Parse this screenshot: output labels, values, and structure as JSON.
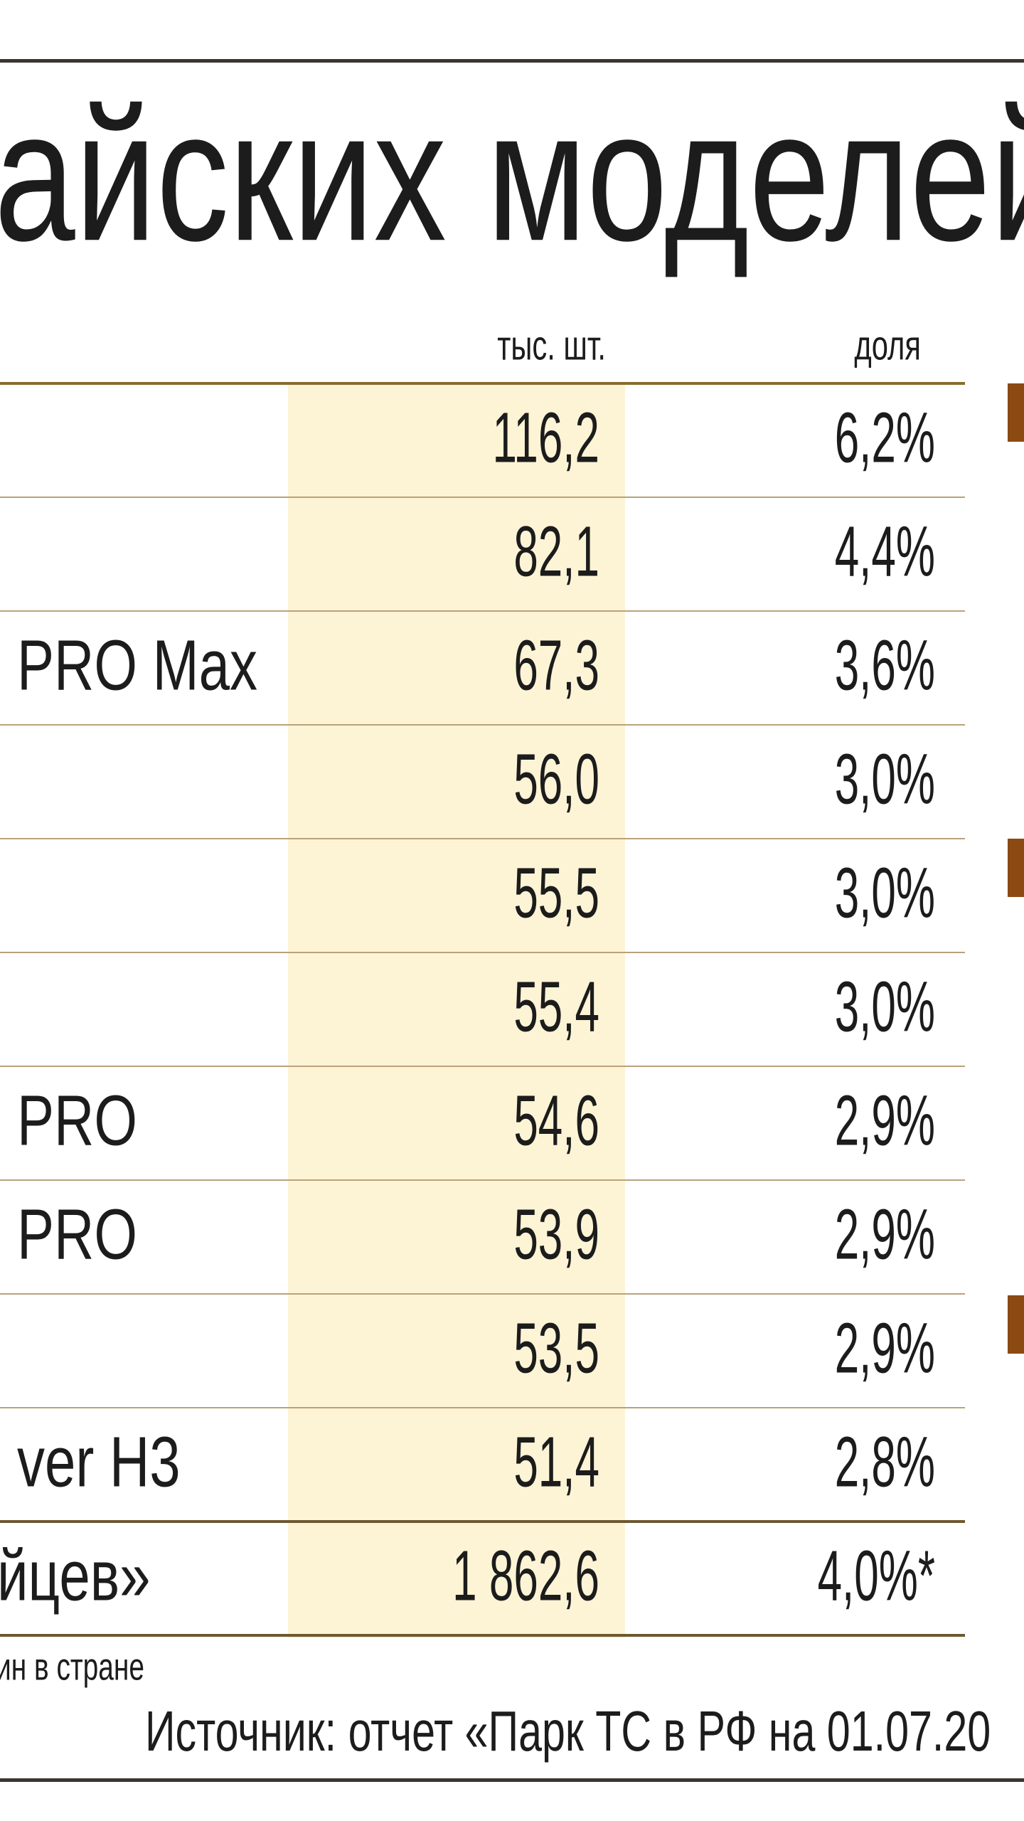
{
  "title": "айских моделей в",
  "table": {
    "header": {
      "count": "тыс. шт.",
      "share": "доля"
    },
    "rows": [
      {
        "count": "116,2",
        "share": "6,2%"
      },
      {
        "count": "82,1",
        "share": "4,4%"
      },
      {
        "name": "PRO Max",
        "count": "67,3",
        "share": "3,6%"
      },
      {
        "count": "56,0",
        "share": "3,0%"
      },
      {
        "count": "55,5",
        "share": "3,0%"
      },
      {
        "count": "55,4",
        "share": "3,0%"
      },
      {
        "name": "PRO",
        "count": "54,6",
        "share": "2,9%"
      },
      {
        "name": "PRO",
        "count": "53,9",
        "share": "2,9%"
      },
      {
        "count": "53,5",
        "share": "2,9%"
      },
      {
        "name": "ver H3",
        "count": "51,4",
        "share": "2,8%"
      }
    ],
    "total": {
      "name": "йцев»",
      "count": "1 862,6",
      "share": "4,0%*"
    }
  },
  "footnote": "ин в стране",
  "source": "Источник: отчет «Парк ТС в РФ на 01.07.20"
}
